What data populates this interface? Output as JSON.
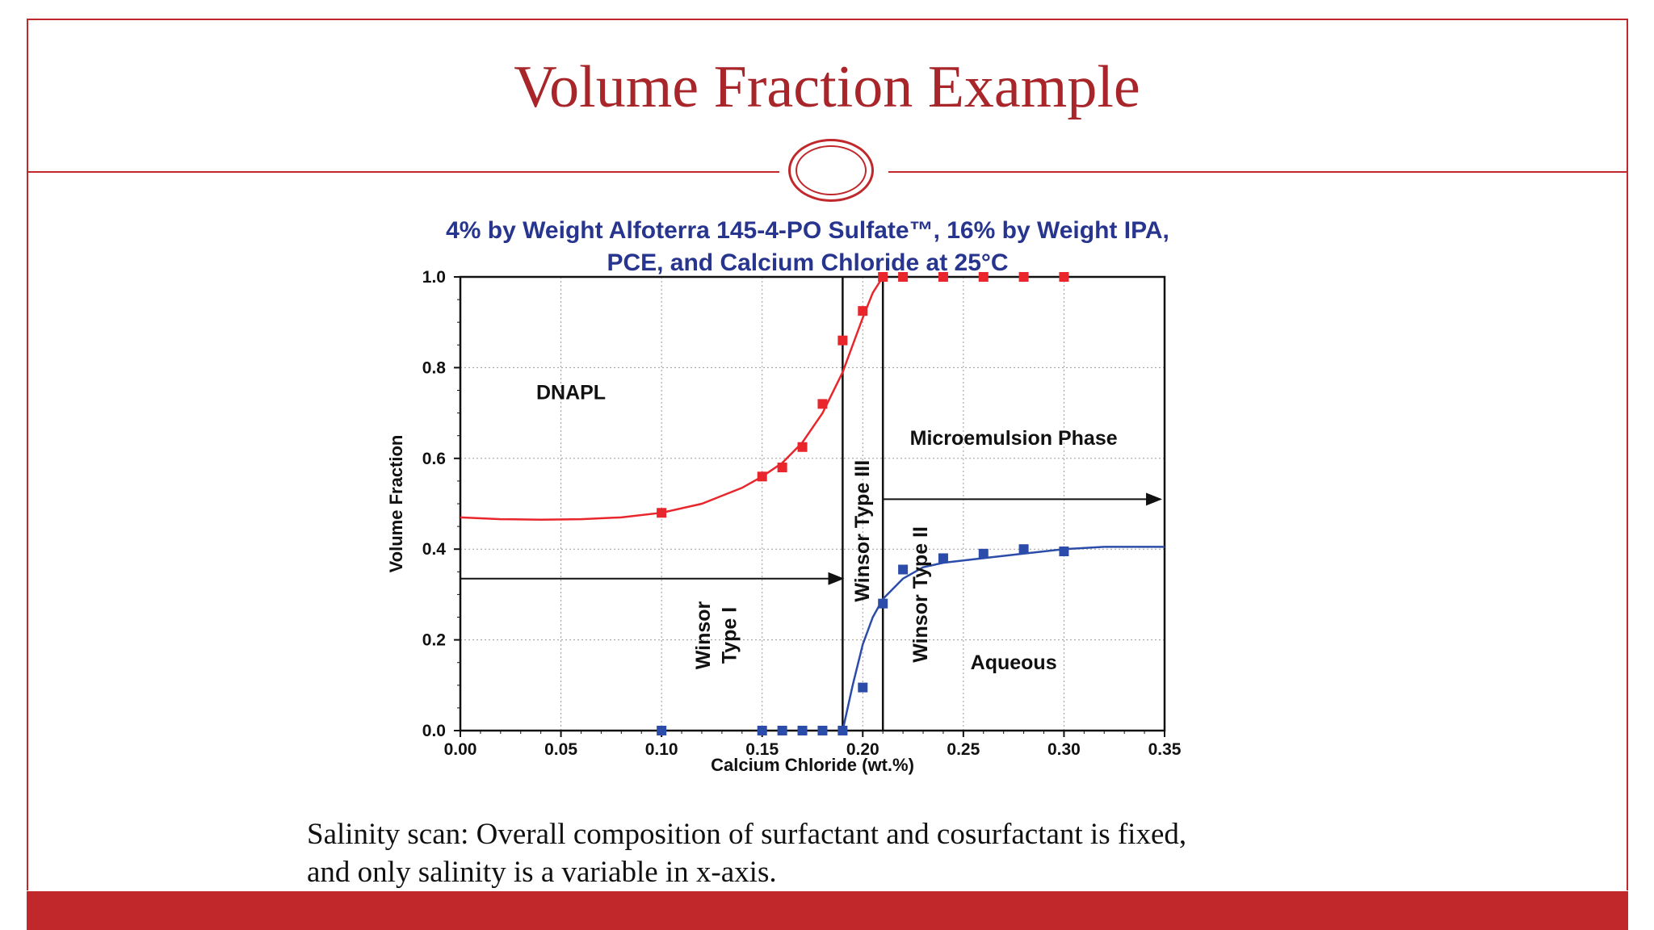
{
  "slide": {
    "title": "Volume Fraction Example",
    "caption_line1": "Salinity scan: Overall composition of surfactant and cosurfactant is fixed,",
    "caption_line2": "and only salinity is a variable in x-axis.",
    "accent_color": "#c0282c"
  },
  "chart_data": {
    "type": "scatter",
    "title_line1": "4% by Weight Alfoterra 145-4-PO Sulfate™, 16% by Weight IPA,",
    "title_line2": "PCE, and Calcium Chloride at 25°C",
    "xlabel": "Calcium Chloride (wt.%)",
    "ylabel": "Volume Fraction",
    "xlim": [
      0,
      0.35
    ],
    "ylim": [
      0,
      1.0
    ],
    "xticks": [
      "0.00",
      "0.05",
      "0.10",
      "0.15",
      "0.20",
      "0.25",
      "0.30",
      "0.35"
    ],
    "yticks": [
      "0.0",
      "0.2",
      "0.4",
      "0.6",
      "0.8",
      "1.0"
    ],
    "grid": true,
    "title_color": "#27358f",
    "series": [
      {
        "color": "#e8262b",
        "x": [
          0.1,
          0.15,
          0.16,
          0.17,
          0.18,
          0.19,
          0.2,
          0.21,
          0.22,
          0.24,
          0.26,
          0.28,
          0.3
        ],
        "y": [
          0.48,
          0.56,
          0.58,
          0.625,
          0.72,
          0.86,
          0.925,
          1.0,
          1.0,
          1.0,
          1.0,
          1.0,
          1.0
        ],
        "fit_x": [
          0.0,
          0.02,
          0.04,
          0.06,
          0.08,
          0.1,
          0.12,
          0.14,
          0.15,
          0.16,
          0.17,
          0.18,
          0.19,
          0.2,
          0.205,
          0.21
        ],
        "fit_y": [
          0.47,
          0.466,
          0.465,
          0.466,
          0.47,
          0.48,
          0.5,
          0.535,
          0.56,
          0.59,
          0.635,
          0.7,
          0.79,
          0.91,
          0.965,
          1.0
        ]
      },
      {
        "color": "#2b4ca8",
        "x": [
          0.1,
          0.15,
          0.16,
          0.17,
          0.18,
          0.19,
          0.2,
          0.21,
          0.22,
          0.24,
          0.26,
          0.28,
          0.3
        ],
        "y": [
          0.0,
          0.0,
          0.0,
          0.0,
          0.0,
          0.0,
          0.095,
          0.28,
          0.355,
          0.38,
          0.39,
          0.4,
          0.395
        ],
        "fit_x": [
          0.19,
          0.195,
          0.2,
          0.205,
          0.21,
          0.22,
          0.23,
          0.24,
          0.26,
          0.28,
          0.3,
          0.32,
          0.35
        ],
        "fit_y": [
          0.0,
          0.1,
          0.19,
          0.25,
          0.29,
          0.335,
          0.36,
          0.37,
          0.38,
          0.39,
          0.4,
          0.405,
          0.405
        ]
      }
    ],
    "boundaries_x": [
      0.19,
      0.21
    ],
    "arrows": [
      {
        "x_from": 0.0,
        "x_to": 0.19,
        "y": 0.335
      },
      {
        "x_from": 0.21,
        "x_to": 0.348,
        "y": 0.51
      }
    ],
    "annotations": [
      {
        "text": "DNAPL",
        "x": 0.055,
        "y": 0.73,
        "rotate": false
      },
      {
        "text": "Microemulsion Phase",
        "x": 0.275,
        "y": 0.63,
        "rotate": false
      },
      {
        "text": "Aqueous",
        "x": 0.275,
        "y": 0.135,
        "rotate": false
      },
      {
        "text": "Winsor",
        "x": 0.124,
        "y": 0.21,
        "rotate": true
      },
      {
        "text": "Type I",
        "x": 0.137,
        "y": 0.21,
        "rotate": true
      },
      {
        "text": "Winsor Type III",
        "x": 0.203,
        "y": 0.44,
        "rotate": true
      },
      {
        "text": "Winsor Type II",
        "x": 0.232,
        "y": 0.3,
        "rotate": true
      }
    ]
  }
}
